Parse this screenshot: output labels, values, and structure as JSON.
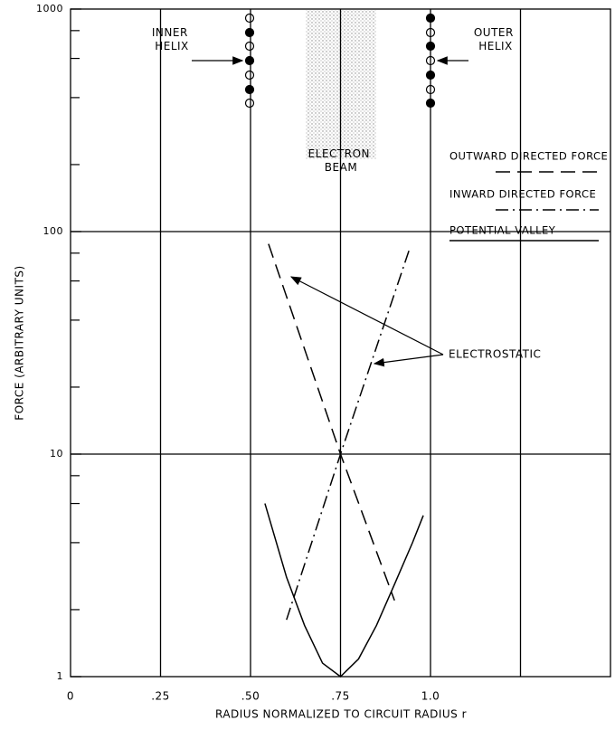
{
  "chart_data": {
    "type": "line",
    "xlabel": "RADIUS NORMALIZED TO CIRCUIT RADIUS r",
    "ylabel": "FORCE (ARBITRARY UNITS)",
    "xlim": [
      0,
      1.5
    ],
    "ylim": [
      1,
      1000
    ],
    "log_y": true,
    "xticks": [
      0,
      {
        "value": 0.25,
        "label": ".25"
      },
      {
        "value": 0.5,
        "label": ".50"
      },
      {
        "value": 0.75,
        "label": ".75"
      },
      {
        "value": 1,
        "label": "1.0"
      }
    ],
    "x_gridlines": [
      0.25,
      0.5,
      0.75,
      1,
      1.25
    ],
    "yticks": [
      1,
      10,
      100,
      1000
    ],
    "y_gridlines": [
      10,
      100
    ],
    "y_minor_ticks": [
      2,
      4,
      6,
      8,
      20,
      40,
      60,
      80,
      200,
      400,
      600,
      800
    ],
    "series": [
      {
        "name": "OUTWARD DIRECTED FORCE",
        "color": "#000000",
        "dash": "dashed",
        "x": [
          0.55,
          0.75,
          0.9
        ],
        "values": [
          88,
          10,
          2.2
        ]
      },
      {
        "name": "INWARD DIRECTED FORCE",
        "color": "#000000",
        "dash": "dashdot",
        "x": [
          0.6,
          0.75,
          0.94
        ],
        "values": [
          1.8,
          10,
          82
        ]
      },
      {
        "name": "POTENTIAL VALLEY",
        "color": "#000000",
        "dash": "solid",
        "x": [
          0.54,
          0.6,
          0.65,
          0.7,
          0.75,
          0.8,
          0.85,
          0.9,
          0.95,
          0.98
        ],
        "values": [
          6,
          2.8,
          1.7,
          1.15,
          1,
          1.2,
          1.7,
          2.6,
          4,
          5.3
        ]
      }
    ],
    "annotations": [
      "INNER HELIX",
      "OUTER HELIX",
      "ELECTRON BEAM",
      "ELECTROSTATIC"
    ]
  }
}
